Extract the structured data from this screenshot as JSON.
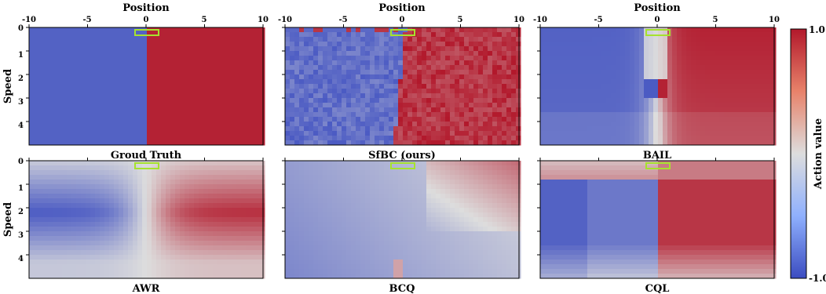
{
  "figure": {
    "colorbar": {
      "label": "Action value",
      "max_label": "1.0",
      "min_label": "-1.0"
    },
    "x_axis_label": "Position",
    "y_axis_label": "Speed",
    "x_tick_labels": [
      "-10",
      "-5",
      "0",
      "5",
      "10"
    ],
    "y_tick_labels": [
      "0",
      "1",
      "2",
      "3",
      "4"
    ]
  },
  "colors": {
    "positive": "#b2182b",
    "neutral": "#dddddd",
    "negative": "#3b4cc0",
    "target_box": "#a6e22e"
  },
  "chart_data": [
    {
      "type": "heatmap",
      "title": "Groud Truth",
      "style": "gt",
      "x_range": [
        -10,
        10
      ],
      "y_range": [
        0,
        5
      ]
    },
    {
      "type": "heatmap",
      "title": "SfBC (ours)",
      "style": "sfbc",
      "x_range": [
        -10,
        10
      ],
      "y_range": [
        0,
        5
      ]
    },
    {
      "type": "heatmap",
      "title": "BAIL",
      "style": "bail",
      "x_range": [
        -10,
        10
      ],
      "y_range": [
        0,
        5
      ]
    },
    {
      "type": "heatmap",
      "title": "AWR",
      "style": "awr",
      "x_range": [
        -10,
        10
      ],
      "y_range": [
        0,
        5
      ]
    },
    {
      "type": "heatmap",
      "title": "BCQ",
      "style": "bcq",
      "x_range": [
        -10,
        10
      ],
      "y_range": [
        0,
        5
      ]
    },
    {
      "type": "heatmap",
      "title": "CQL",
      "style": "cql",
      "x_range": [
        -10,
        10
      ],
      "y_range": [
        0,
        5
      ]
    }
  ]
}
